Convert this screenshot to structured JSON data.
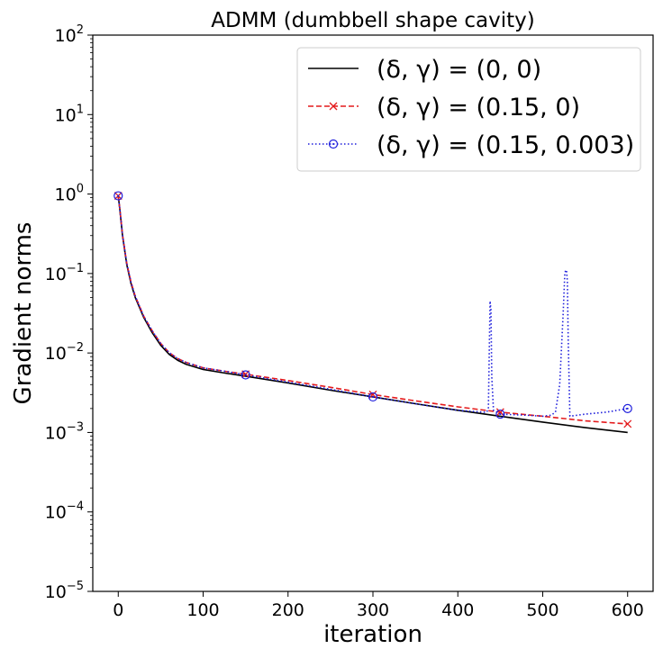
{
  "chart_data": {
    "type": "line",
    "title": "ADMM (dumbbell shape cavity)",
    "xlabel": "iteration",
    "ylabel": "Gradient norms",
    "xscale": "linear",
    "yscale": "log",
    "xlim": [
      -30,
      630
    ],
    "ylim": [
      1e-05,
      100
    ],
    "xticks": [
      0,
      100,
      200,
      300,
      400,
      500,
      600
    ],
    "xtick_labels": [
      "0",
      "100",
      "200",
      "300",
      "400",
      "500",
      "600"
    ],
    "yticks": [
      -5,
      -4,
      -3,
      -2,
      -1,
      0,
      1,
      2
    ],
    "ytick_base": "10",
    "legend_location": "upper right",
    "series": [
      {
        "name": "(δ, γ) = (0, 0)",
        "color": "#000000",
        "linestyle": "solid",
        "marker": "none",
        "x": [
          0,
          2,
          5,
          10,
          15,
          20,
          30,
          40,
          50,
          60,
          70,
          80,
          100,
          125,
          150,
          200,
          250,
          300,
          350,
          400,
          450,
          500,
          550,
          600
        ],
        "y": [
          0.95,
          0.62,
          0.3,
          0.13,
          0.075,
          0.05,
          0.028,
          0.018,
          0.0125,
          0.0096,
          0.0081,
          0.0072,
          0.0062,
          0.0056,
          0.0051,
          0.0042,
          0.0034,
          0.0028,
          0.0023,
          0.0019,
          0.0016,
          0.00135,
          0.00115,
          0.001
        ]
      },
      {
        "name": "(δ, γ) = (0.15, 0)",
        "color": "#e41a1c",
        "linestyle": "dashed",
        "marker": "x",
        "markevery": [
          0,
          150,
          300,
          450,
          600
        ],
        "x": [
          0,
          2,
          5,
          10,
          15,
          20,
          30,
          40,
          50,
          60,
          70,
          80,
          100,
          125,
          150,
          200,
          250,
          300,
          350,
          400,
          450,
          500,
          550,
          600
        ],
        "y": [
          0.95,
          0.63,
          0.31,
          0.135,
          0.078,
          0.052,
          0.029,
          0.019,
          0.0132,
          0.0101,
          0.0085,
          0.0076,
          0.0065,
          0.0059,
          0.0054,
          0.0045,
          0.0037,
          0.003,
          0.0025,
          0.0021,
          0.0018,
          0.0016,
          0.0014,
          0.00128
        ]
      },
      {
        "name": "(δ, γ) = (0.15, 0.003)",
        "color": "#1f1fdc",
        "linestyle": "dotted",
        "marker": "o",
        "markevery": [
          0,
          150,
          300,
          450,
          600
        ],
        "x": [
          0,
          2,
          5,
          10,
          15,
          20,
          30,
          40,
          50,
          60,
          70,
          80,
          100,
          125,
          150,
          200,
          250,
          300,
          350,
          400,
          430,
          434,
          436,
          437,
          438,
          439,
          440,
          442,
          450,
          480,
          500,
          510,
          515,
          520,
          524,
          526,
          527,
          528,
          529,
          530,
          532,
          550,
          575,
          600
        ],
        "y": [
          0.95,
          0.63,
          0.31,
          0.135,
          0.078,
          0.052,
          0.029,
          0.019,
          0.0132,
          0.0101,
          0.0085,
          0.0076,
          0.0065,
          0.0059,
          0.0053,
          0.0043,
          0.0035,
          0.0028,
          0.0023,
          0.0019,
          0.0018,
          0.0018,
          0.002,
          0.01,
          0.045,
          0.035,
          0.005,
          0.0019,
          0.0017,
          0.00165,
          0.0016,
          0.00165,
          0.0018,
          0.004,
          0.03,
          0.1,
          0.11,
          0.11,
          0.08,
          0.015,
          0.0016,
          0.0017,
          0.0018,
          0.002
        ]
      }
    ]
  }
}
